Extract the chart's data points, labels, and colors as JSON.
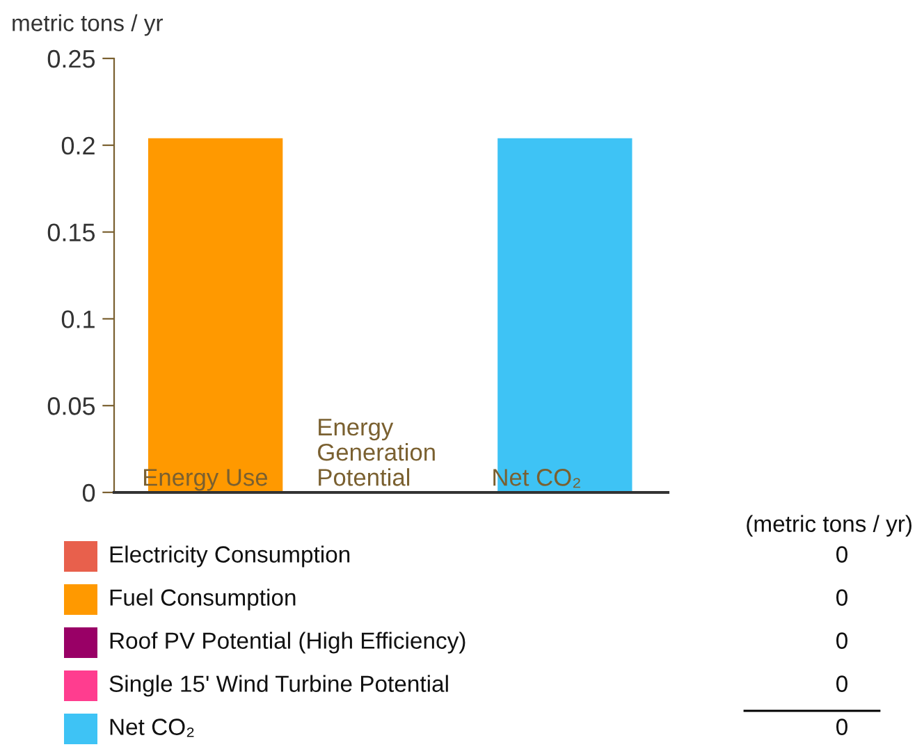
{
  "chart_data": {
    "type": "bar",
    "stacked": true,
    "ylabel": "metric tons / yr",
    "categories": [
      "Energy Use",
      "Energy Generation Potential",
      "Net CO₂"
    ],
    "series": [
      {
        "name": "Electricity Consumption",
        "color": "#e8604c",
        "values": [
          0,
          0,
          0
        ]
      },
      {
        "name": "Fuel Consumption",
        "color": "#ff9900",
        "values": [
          0.204,
          0,
          0
        ]
      },
      {
        "name": "Roof PV Potential (High Efficiency)",
        "color": "#990066",
        "values": [
          0,
          0,
          0
        ]
      },
      {
        "name": "Single 15' Wind Turbine Potential",
        "color": "#ff3d8f",
        "values": [
          0,
          0,
          0
        ]
      },
      {
        "name": "Net CO₂",
        "color": "#3ec3f5",
        "values": [
          0,
          0,
          0.204
        ]
      }
    ],
    "ylim": [
      0,
      0.25
    ],
    "yticks": [
      0,
      0.05,
      0.1,
      0.15,
      0.2,
      0.25
    ],
    "grid": false,
    "legend": "bottom",
    "annotations": [
      "(metric tons / yr)",
      "0",
      "0",
      "0",
      "0",
      "0"
    ]
  }
}
